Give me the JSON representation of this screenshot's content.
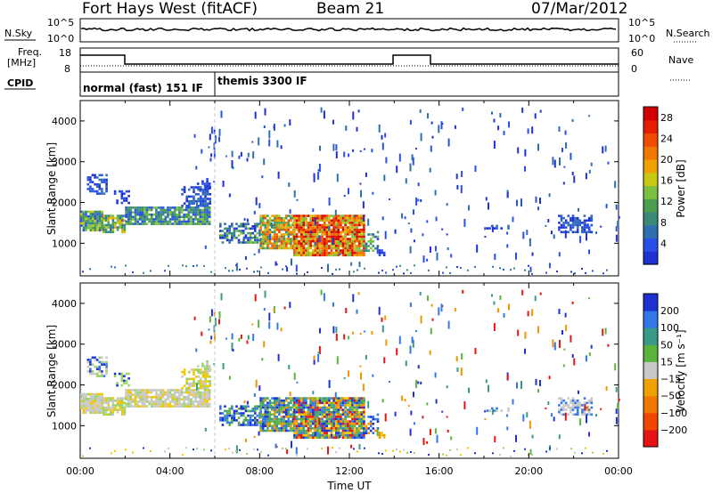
{
  "header": {
    "station": "Fort Hays West (fitACF)",
    "beam": "Beam 21",
    "date": "07/Mar/2012"
  },
  "strip_labels": {
    "nsky": "N.Sky",
    "nsearch": "N.Search",
    "freq": "Freq.",
    "freq_unit": "[MHz]",
    "nave": "Nave",
    "cpid": "CPID"
  },
  "noise_axis": {
    "top": "10^5",
    "bottom": "10^0"
  },
  "freq_axis": {
    "top": "18",
    "bottom": "8"
  },
  "nave_axis": {
    "top": "60",
    "bottom": "0"
  },
  "cpid_segments": [
    {
      "label": "normal (fast) 151 IF",
      "start_hour": 0
    },
    {
      "label": "themis 3300 IF",
      "start_hour": 6
    }
  ],
  "chart_data": [
    {
      "type": "heatmap",
      "name": "power-panel",
      "ylabel": "Slant Range [km]",
      "xlabel": "",
      "xlim_hours": [
        0,
        24
      ],
      "ylim": [
        200,
        4500
      ],
      "y_ticks": [
        "1000",
        "2000",
        "3000",
        "4000"
      ],
      "colorbar": {
        "label": "Power [dB]",
        "ticks": [
          "4",
          "8",
          "12",
          "16",
          "20",
          "24",
          "28"
        ],
        "range": [
          0,
          30
        ]
      }
    },
    {
      "type": "heatmap",
      "name": "velocity-panel",
      "ylabel": "Slant Range [km]",
      "xlabel": "Time UT",
      "xlim_hours": [
        0,
        24
      ],
      "ylim": [
        200,
        4500
      ],
      "y_ticks": [
        "1000",
        "2000",
        "3000",
        "4000"
      ],
      "x_ticks": [
        "00:00",
        "04:00",
        "08:00",
        "12:00",
        "16:00",
        "20:00",
        "00:00"
      ],
      "colorbar": {
        "label": "Velocity [m s⁻¹]",
        "ticks": [
          "200",
          "100",
          "50",
          "15",
          "−15",
          "−50",
          "−100",
          "−200"
        ]
      }
    }
  ]
}
